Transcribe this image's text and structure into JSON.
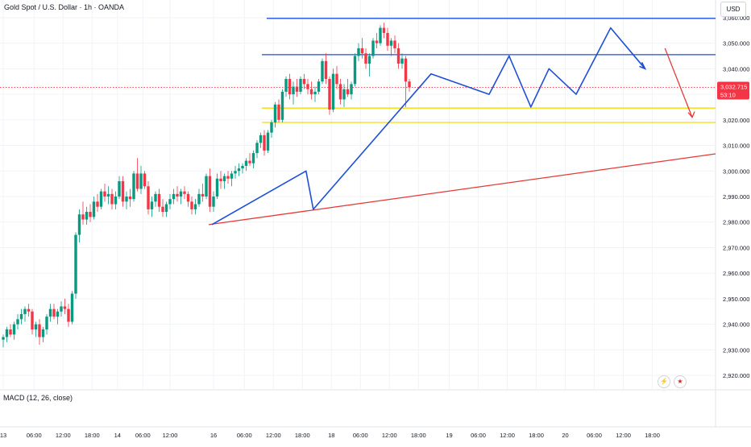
{
  "header": {
    "title": "Gold Spot / U.S. Dollar · 1h · OANDA",
    "currency": "USD"
  },
  "price_label": {
    "value": "3,032.715",
    "countdown": "53:10",
    "color": "#f23645"
  },
  "indicator": {
    "label": "MACD (12, 26, close)"
  },
  "icons": {
    "flash": "flash-icon",
    "flag": "us-flag-icon"
  },
  "colors": {
    "up": "#089981",
    "down": "#f23645",
    "blue_lines": "#1e4fd8",
    "yellow_lines": "#f5d90a",
    "trend": "#e53935"
  },
  "chart_data": {
    "type": "candlestick",
    "title": "Gold Spot / U.S. Dollar · 1h · OANDA",
    "ylim": [
      2915,
      3065
    ],
    "y_ticks": [
      2920,
      2930,
      2940,
      2950,
      2960,
      2970,
      2980,
      2990,
      3000,
      3010,
      3020,
      3030,
      3040,
      3050,
      3060
    ],
    "y_tick_labels": [
      "2,920.000",
      "2,930.000",
      "2,940.000",
      "2,950.000",
      "2,960.000",
      "2,970.000",
      "2,980.000",
      "2,990.000",
      "3,000.000",
      "3,010.000",
      "3,020.000",
      "3,030.000",
      "3,040.000",
      "3,050.000",
      "3,060.000"
    ],
    "x_tick_labels": [
      "13",
      "06:00",
      "12:00",
      "18:00",
      "14",
      "06:00",
      "12:00",
      "16",
      "06:00",
      "12:00",
      "18:00",
      "18",
      "06:00",
      "12:00",
      "18:00",
      "19",
      "06:00",
      "12:00",
      "18:00",
      "20",
      "06:00",
      "12:00",
      "18:00"
    ],
    "x_tick_bars": [
      0,
      8.5,
      16.5,
      24.5,
      31.5,
      38.5,
      46,
      58,
      66.5,
      74.5,
      82.5,
      90.5,
      98.5,
      106.5,
      114.5,
      123,
      131,
      139,
      147,
      155,
      163,
      171,
      179
    ],
    "last_price": 3032.715,
    "candles": [
      [
        2934,
        2936,
        2931,
        2935
      ],
      [
        2935,
        2939,
        2933,
        2938
      ],
      [
        2938,
        2940,
        2935,
        2936
      ],
      [
        2936,
        2941,
        2934,
        2940
      ],
      [
        2940,
        2944,
        2938,
        2942
      ],
      [
        2942,
        2946,
        2940,
        2944
      ],
      [
        2944,
        2947,
        2941,
        2946
      ],
      [
        2946,
        2948,
        2943,
        2945
      ],
      [
        2945,
        2946,
        2936,
        2938
      ],
      [
        2938,
        2941,
        2935,
        2940
      ],
      [
        2940,
        2942,
        2932,
        2935
      ],
      [
        2935,
        2939,
        2933,
        2938
      ],
      [
        2938,
        2944,
        2936,
        2943
      ],
      [
        2943,
        2948,
        2941,
        2946
      ],
      [
        2946,
        2948,
        2942,
        2943
      ],
      [
        2943,
        2946,
        2940,
        2945
      ],
      [
        2945,
        2949,
        2943,
        2947
      ],
      [
        2947,
        2950,
        2944,
        2946
      ],
      [
        2946,
        2948,
        2939,
        2941
      ],
      [
        2941,
        2953,
        2940,
        2952
      ],
      [
        2952,
        2976,
        2950,
        2975
      ],
      [
        2975,
        2985,
        2972,
        2983
      ],
      [
        2983,
        2988,
        2979,
        2981
      ],
      [
        2981,
        2986,
        2979,
        2984
      ],
      [
        2984,
        2987,
        2980,
        2982
      ],
      [
        2982,
        2990,
        2981,
        2988
      ],
      [
        2988,
        2991,
        2984,
        2986
      ],
      [
        2986,
        2993,
        2985,
        2992
      ],
      [
        2992,
        2995,
        2988,
        2990
      ],
      [
        2990,
        2994,
        2987,
        2991
      ],
      [
        2991,
        2993,
        2985,
        2987
      ],
      [
        2987,
        2992,
        2985,
        2990
      ],
      [
        2990,
        2998,
        2989,
        2996
      ],
      [
        2996,
        2998,
        2986,
        2988
      ],
      [
        2988,
        2992,
        2985,
        2990
      ],
      [
        2990,
        2993,
        2986,
        2989
      ],
      [
        2989,
        3000,
        2988,
        2999
      ],
      [
        2999,
        3005,
        2992,
        2993
      ],
      [
        2993,
        3002,
        2991,
        2999
      ],
      [
        2999,
        3000,
        2993,
        2994
      ],
      [
        2994,
        2996,
        2983,
        2985
      ],
      [
        2985,
        2990,
        2982,
        2988
      ],
      [
        2988,
        2992,
        2986,
        2991
      ],
      [
        2991,
        2993,
        2984,
        2986
      ],
      [
        2986,
        2989,
        2982,
        2984
      ],
      [
        2984,
        2988,
        2982,
        2987
      ],
      [
        2987,
        2991,
        2985,
        2989
      ],
      [
        2989,
        2993,
        2987,
        2991
      ],
      [
        2991,
        2994,
        2988,
        2990
      ],
      [
        2990,
        2993,
        2987,
        2992
      ],
      [
        2992,
        2994,
        2989,
        2991
      ],
      [
        2991,
        2992,
        2986,
        2988
      ],
      [
        2988,
        2990,
        2983,
        2985
      ],
      [
        2985,
        2989,
        2983,
        2987
      ],
      [
        2987,
        2993,
        2986,
        2991
      ],
      [
        2991,
        2995,
        2988,
        2990
      ],
      [
        2990,
        2999,
        2989,
        2998
      ],
      [
        2998,
        3001,
        2984,
        2986
      ],
      [
        2986,
        2992,
        2984,
        2990
      ],
      [
        2990,
        2999,
        2989,
        2997
      ],
      [
        2997,
        3000,
        2993,
        2996
      ],
      [
        2996,
        2999,
        2993,
        2998
      ],
      [
        2998,
        3000,
        2995,
        2997
      ],
      [
        2997,
        3000,
        2994,
        2999
      ],
      [
        2999,
        3002,
        2997,
        3000
      ],
      [
        3000,
        3003,
        2998,
        3001
      ],
      [
        3001,
        3003,
        2999,
        3002
      ],
      [
        3002,
        3005,
        3000,
        3004
      ],
      [
        3004,
        3007,
        3002,
        3003
      ],
      [
        3003,
        3008,
        3001,
        3007
      ],
      [
        3007,
        3012,
        3005,
        3011
      ],
      [
        3011,
        3015,
        3009,
        3014
      ],
      [
        3014,
        3016,
        3006,
        3008
      ],
      [
        3008,
        3016,
        3007,
        3015
      ],
      [
        3015,
        3020,
        3013,
        3019
      ],
      [
        3019,
        3027,
        3017,
        3026
      ],
      [
        3026,
        3028,
        3019,
        3020
      ],
      [
        3020,
        3032,
        3019,
        3031
      ],
      [
        3031,
        3037,
        3029,
        3036
      ],
      [
        3036,
        3038,
        3028,
        3030
      ],
      [
        3030,
        3035,
        3026,
        3033
      ],
      [
        3033,
        3036,
        3029,
        3031
      ],
      [
        3031,
        3037,
        3030,
        3036
      ],
      [
        3036,
        3038,
        3032,
        3034
      ],
      [
        3034,
        3036,
        3030,
        3032
      ],
      [
        3032,
        3035,
        3028,
        3030
      ],
      [
        3030,
        3033,
        3027,
        3031
      ],
      [
        3031,
        3036,
        3030,
        3035
      ],
      [
        3035,
        3044,
        3034,
        3043
      ],
      [
        3043,
        3046,
        3034,
        3036
      ],
      [
        3036,
        3037,
        3022,
        3024
      ],
      [
        3024,
        3040,
        3023,
        3038
      ],
      [
        3038,
        3041,
        3032,
        3034
      ],
      [
        3034,
        3036,
        3026,
        3028
      ],
      [
        3028,
        3034,
        3025,
        3032
      ],
      [
        3032,
        3036,
        3029,
        3030
      ],
      [
        3030,
        3035,
        3028,
        3034
      ],
      [
        3034,
        3046,
        3033,
        3045
      ],
      [
        3045,
        3050,
        3043,
        3048
      ],
      [
        3048,
        3052,
        3044,
        3046
      ],
      [
        3046,
        3048,
        3040,
        3042
      ],
      [
        3042,
        3046,
        3037,
        3045
      ],
      [
        3045,
        3052,
        3044,
        3051
      ],
      [
        3051,
        3054,
        3048,
        3050
      ],
      [
        3050,
        3057,
        3049,
        3056
      ],
      [
        3056,
        3058,
        3052,
        3054
      ],
      [
        3054,
        3056,
        3047,
        3049
      ],
      [
        3049,
        3052,
        3045,
        3051
      ],
      [
        3051,
        3053,
        3046,
        3048
      ],
      [
        3048,
        3050,
        3040,
        3042
      ],
      [
        3042,
        3046,
        3040,
        3044
      ],
      [
        3044,
        3045,
        3025,
        3035
      ],
      [
        3035,
        3036,
        3031,
        3032.715
      ]
    ]
  }
}
